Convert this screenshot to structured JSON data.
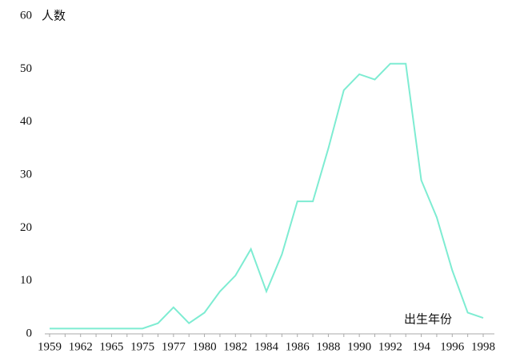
{
  "chart_data": {
    "type": "line",
    "y_label": "人数",
    "x_label": "出生年份",
    "categories": [
      "1959",
      null,
      "1962",
      null,
      "1965",
      null,
      "1975",
      null,
      "1977",
      null,
      "1980",
      null,
      "1982",
      null,
      "1984",
      null,
      "1986",
      null,
      "1988",
      null,
      "1990",
      null,
      "1992",
      null,
      "194",
      null,
      "1996",
      null,
      "1998"
    ],
    "series": [
      {
        "color": "#7eecd2",
        "values": [
          1,
          1,
          1,
          1,
          1,
          1,
          1,
          2,
          5,
          2,
          4,
          8,
          11,
          16,
          8,
          15,
          25,
          25,
          35,
          46,
          49,
          48,
          51,
          51,
          29,
          22,
          12,
          4,
          3
        ]
      }
    ],
    "ylim": [
      0,
      60
    ],
    "yticks": [
      0,
      10,
      20,
      30,
      40,
      50,
      60
    ],
    "grid": false
  }
}
